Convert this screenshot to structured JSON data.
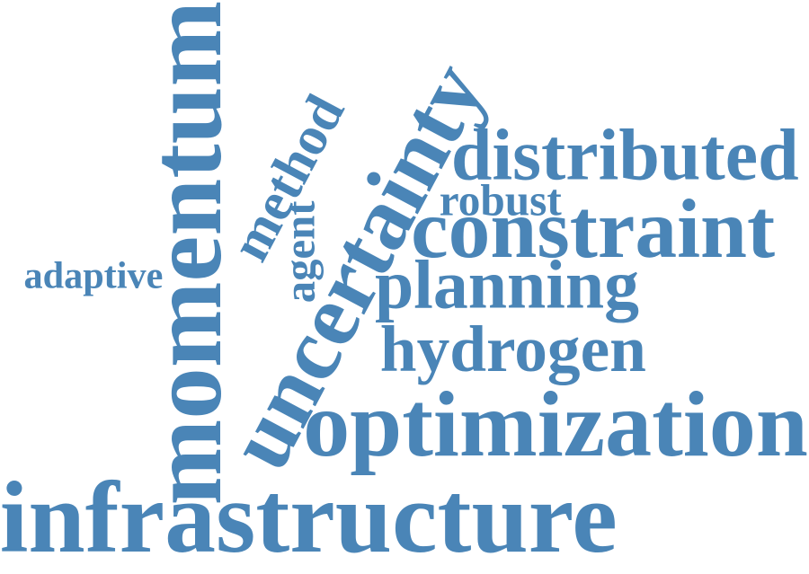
{
  "color": "#4a85b7",
  "words": [
    {
      "text": "infrastructure",
      "weight": 10
    },
    {
      "text": "optimization",
      "weight": 8
    },
    {
      "text": "uncertainty",
      "weight": 8
    },
    {
      "text": "momentum",
      "weight": 8
    },
    {
      "text": "constraint",
      "weight": 7
    },
    {
      "text": "distributed",
      "weight": 6
    },
    {
      "text": "hydrogen",
      "weight": 6
    },
    {
      "text": "planning",
      "weight": 6
    },
    {
      "text": "method",
      "weight": 4
    },
    {
      "text": "robust",
      "weight": 3
    },
    {
      "text": "adaptive",
      "weight": 3
    },
    {
      "text": "agent",
      "weight": 2
    }
  ]
}
